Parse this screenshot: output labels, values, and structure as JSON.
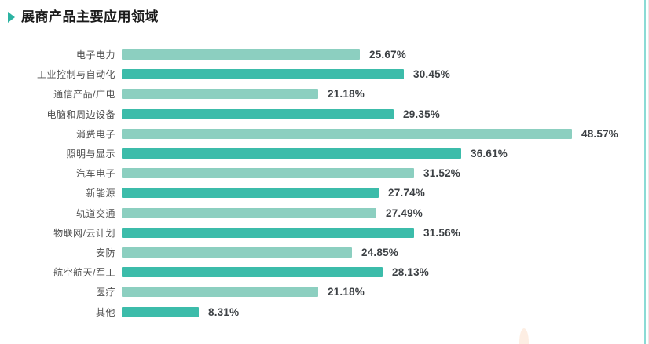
{
  "header": {
    "title": "展商产品主要应用领域",
    "marker_icon": "right-triangle"
  },
  "chart_data": {
    "type": "bar",
    "orientation": "horizontal",
    "title": "展商产品主要应用领域",
    "categories": [
      "电子电力",
      "工业控制与自动化",
      "通信产品/广电",
      "电脑和周边设备",
      "消费电子",
      "照明与显示",
      "汽车电子",
      "新能源",
      "轨道交通",
      "物联网/云计划",
      "安防",
      "航空航天/军工",
      "医疗",
      "其他"
    ],
    "values": [
      25.67,
      30.45,
      21.18,
      29.35,
      48.57,
      36.61,
      31.52,
      27.74,
      27.49,
      31.56,
      24.85,
      28.13,
      21.18,
      8.31
    ],
    "value_labels": [
      "25.67%",
      "30.45%",
      "21.18%",
      "29.35%",
      "48.57%",
      "36.61%",
      "31.52%",
      "27.74%",
      "27.49%",
      "31.56%",
      "24.85%",
      "28.13%",
      "21.18%",
      "8.31%"
    ],
    "xlim": [
      0,
      50
    ],
    "grid": false,
    "legend": false,
    "axis_visible": false,
    "bar_colors_alternating": [
      "#8ccfc0",
      "#3cbcaa"
    ],
    "value_label_color": "#3d4145",
    "category_label_color": "#4f4f4f"
  },
  "decor": {
    "accent_color": "#2cb3a2",
    "right_border_color": "#8adbd5",
    "corner_shape_color": "#fdeee3"
  }
}
